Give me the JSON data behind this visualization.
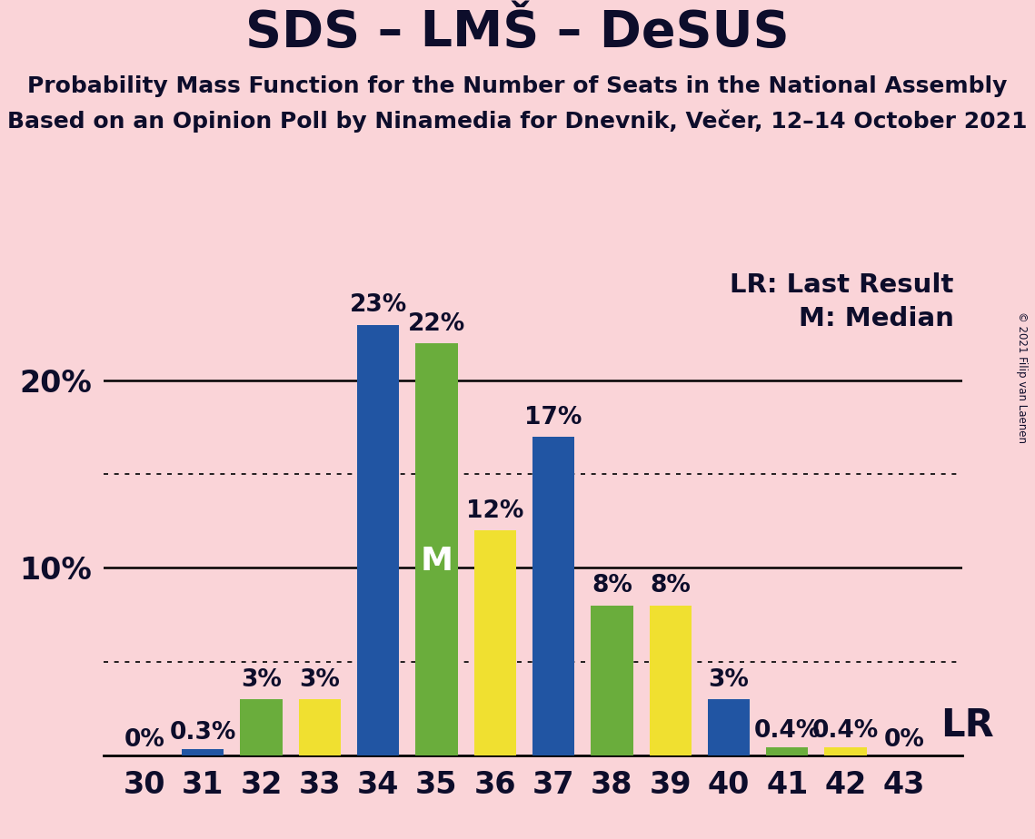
{
  "title": "SDS – LMŠ – DeSUS",
  "subtitle1": "Probability Mass Function for the Number of Seats in the National Assembly",
  "subtitle2": "Based on an Opinion Poll by Ninamedia for Dnevnik, Večer, 12–14 October 2021",
  "copyright": "© 2021 Filip van Laenen",
  "seats": [
    30,
    31,
    32,
    33,
    34,
    35,
    36,
    37,
    38,
    39,
    40,
    41,
    42,
    43
  ],
  "values": [
    0,
    0.3,
    3,
    3,
    23,
    22,
    12,
    17,
    8,
    8,
    3,
    0.4,
    0.4,
    0
  ],
  "colors": [
    "#2155A3",
    "#2155A3",
    "#6AAD3C",
    "#F0E030",
    "#2155A3",
    "#6AAD3C",
    "#F0E030",
    "#2155A3",
    "#6AAD3C",
    "#F0E030",
    "#2155A3",
    "#6AAD3C",
    "#F0E030",
    "#F0E030"
  ],
  "labels": [
    "0%",
    "0.3%",
    "3%",
    "3%",
    "23%",
    "22%",
    "12%",
    "17%",
    "8%",
    "8%",
    "3%",
    "0.4%",
    "0.4%",
    "0%"
  ],
  "median_seat": 35,
  "median_label": "M",
  "lr_label": "LR",
  "background_color": "#FAD4D8",
  "bar_width": 0.72,
  "ylim": [
    0,
    26
  ],
  "solid_yticks": [
    10,
    20
  ],
  "dotted_yticks": [
    5,
    15
  ],
  "legend_lr": "LR: Last Result",
  "legend_m": "M: Median",
  "title_fontsize": 40,
  "subtitle_fontsize": 18,
  "axis_tick_fontsize": 24,
  "bar_label_fontsize": 19,
  "legend_fontsize": 21,
  "median_label_fontsize": 26,
  "lr_label_fontsize": 30,
  "text_color": "#0d0d2b"
}
